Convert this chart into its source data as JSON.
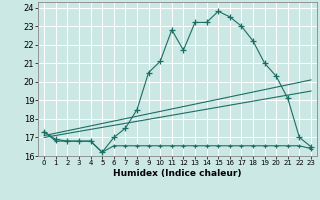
{
  "title": "",
  "xlabel": "Humidex (Indice chaleur)",
  "background_color": "#cce8e4",
  "line_color": "#1a6e64",
  "grid_color": "#ffffff",
  "x_values": [
    0,
    1,
    2,
    3,
    4,
    5,
    6,
    7,
    8,
    9,
    10,
    11,
    12,
    13,
    14,
    15,
    16,
    17,
    18,
    19,
    20,
    21,
    22,
    23
  ],
  "series1": [
    17.3,
    16.9,
    16.8,
    16.8,
    16.8,
    16.2,
    17.0,
    17.5,
    18.5,
    20.5,
    21.1,
    22.8,
    21.7,
    23.2,
    23.2,
    23.8,
    23.5,
    23.0,
    22.2,
    21.0,
    20.3,
    19.1,
    17.0,
    16.5
  ],
  "series2": [
    17.3,
    16.8,
    16.8,
    16.8,
    16.8,
    16.2,
    16.55,
    16.55,
    16.55,
    16.55,
    16.55,
    16.55,
    16.55,
    16.55,
    16.55,
    16.55,
    16.55,
    16.55,
    16.55,
    16.55,
    16.55,
    16.55,
    16.55,
    16.4
  ],
  "series3_x": [
    0,
    23
  ],
  "series3_y": [
    17.1,
    20.1
  ],
  "series4_x": [
    0,
    23
  ],
  "series4_y": [
    17.0,
    19.5
  ],
  "ylim": [
    16.0,
    24.3
  ],
  "xlim": [
    -0.5,
    23.5
  ],
  "yticks": [
    16,
    17,
    18,
    19,
    20,
    21,
    22,
    23,
    24
  ],
  "xticks": [
    0,
    1,
    2,
    3,
    4,
    5,
    6,
    7,
    8,
    9,
    10,
    11,
    12,
    13,
    14,
    15,
    16,
    17,
    18,
    19,
    20,
    21,
    22,
    23
  ],
  "xtick_labels": [
    "0",
    "1",
    "2",
    "3",
    "4",
    "5",
    "6",
    "7",
    "8",
    "9",
    "10",
    "11",
    "12",
    "13",
    "14",
    "15",
    "16",
    "17",
    "18",
    "19",
    "20",
    "21",
    "22",
    "23"
  ]
}
